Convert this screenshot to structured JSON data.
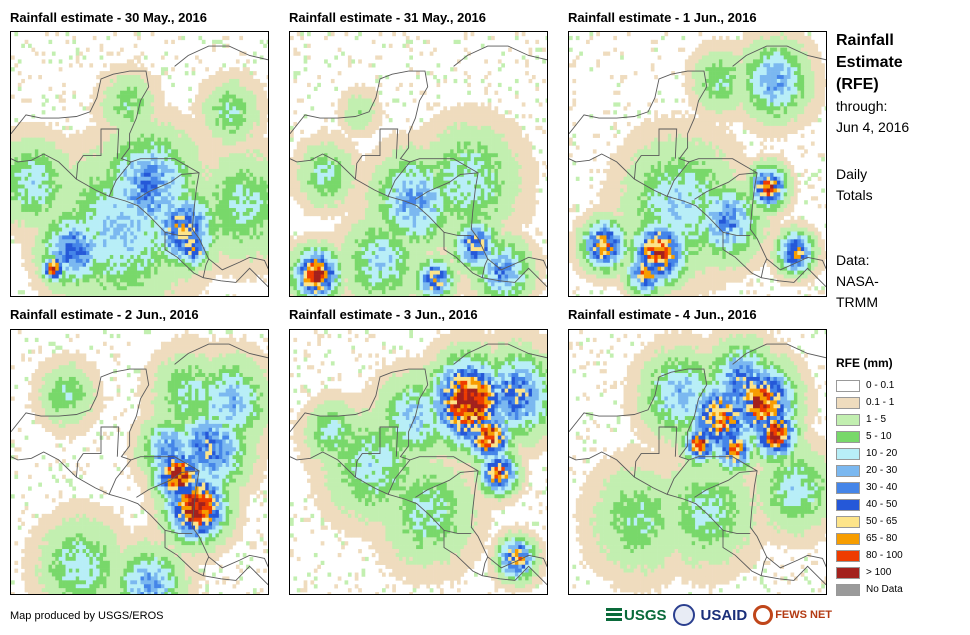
{
  "panels": [
    {
      "title": "Rainfall estimate - 30 May., 2016",
      "blobs": [
        {
          "lon": -87.0,
          "lat": 14.2,
          "r": 2.6,
          "peak": 35
        },
        {
          "lon": -84.5,
          "lat": 11.5,
          "r": 1.8,
          "peak": 55
        },
        {
          "lon": -83.8,
          "lat": 10.3,
          "r": 0.9,
          "peak": 70
        },
        {
          "lon": -92.5,
          "lat": 10.2,
          "r": 1.8,
          "peak": 40
        },
        {
          "lon": -94.0,
          "lat": 9.0,
          "r": 0.6,
          "peak": 100
        },
        {
          "lon": -89.0,
          "lat": 11.5,
          "r": 3.5,
          "peak": 20
        },
        {
          "lon": -80.0,
          "lat": 13.0,
          "r": 2.5,
          "peak": 12
        },
        {
          "lon": -95.5,
          "lat": 14.5,
          "r": 2.0,
          "peak": 15
        },
        {
          "lon": -88.5,
          "lat": 19.5,
          "r": 1.5,
          "peak": 8
        },
        {
          "lon": -81.0,
          "lat": 19.0,
          "r": 1.5,
          "peak": 10
        }
      ]
    },
    {
      "title": "Rainfall estimate - 31 May., 2016",
      "blobs": [
        {
          "lon": -95.2,
          "lat": 8.6,
          "r": 1.2,
          "peak": 110
        },
        {
          "lon": -88.0,
          "lat": 13.3,
          "r": 2.2,
          "peak": 30
        },
        {
          "lon": -83.5,
          "lat": 10.5,
          "r": 1.2,
          "peak": 55
        },
        {
          "lon": -86.5,
          "lat": 8.3,
          "r": 1.0,
          "peak": 60
        },
        {
          "lon": -84.0,
          "lat": 14.5,
          "r": 2.6,
          "peak": 15
        },
        {
          "lon": -90.5,
          "lat": 9.5,
          "r": 2.0,
          "peak": 18
        },
        {
          "lon": -94.5,
          "lat": 15.0,
          "r": 1.5,
          "peak": 12
        },
        {
          "lon": -81.5,
          "lat": 8.8,
          "r": 1.5,
          "peak": 35
        },
        {
          "lon": -92.0,
          "lat": 19.0,
          "r": 1.0,
          "peak": 5
        }
      ]
    },
    {
      "title": "Rainfall estimate - 1 Jun., 2016",
      "blobs": [
        {
          "lon": -90.5,
          "lat": 10.0,
          "r": 1.5,
          "peak": 90
        },
        {
          "lon": -91.5,
          "lat": 8.7,
          "r": 1.0,
          "peak": 75
        },
        {
          "lon": -94.5,
          "lat": 10.5,
          "r": 1.2,
          "peak": 70
        },
        {
          "lon": -82.5,
          "lat": 14.2,
          "r": 1.0,
          "peak": 85
        },
        {
          "lon": -85.5,
          "lat": 12.0,
          "r": 1.8,
          "peak": 35
        },
        {
          "lon": -80.5,
          "lat": 10.0,
          "r": 1.0,
          "peak": 65
        },
        {
          "lon": -82.0,
          "lat": 21.0,
          "r": 1.8,
          "peak": 30
        },
        {
          "lon": -89.0,
          "lat": 13.0,
          "r": 3.0,
          "peak": 18
        },
        {
          "lon": -86.0,
          "lat": 21.0,
          "r": 1.5,
          "peak": 10
        }
      ]
    },
    {
      "title": "Rainfall estimate - 2 Jun., 2016",
      "blobs": [
        {
          "lon": -84.8,
          "lat": 14.8,
          "r": 1.3,
          "peak": 110
        },
        {
          "lon": -83.5,
          "lat": 12.8,
          "r": 1.6,
          "peak": 120
        },
        {
          "lon": -82.5,
          "lat": 16.5,
          "r": 2.0,
          "peak": 45
        },
        {
          "lon": -85.5,
          "lat": 16.5,
          "r": 1.5,
          "peak": 35
        },
        {
          "lon": -81.0,
          "lat": 19.5,
          "r": 2.0,
          "peak": 25
        },
        {
          "lon": -84.0,
          "lat": 20.0,
          "r": 2.0,
          "peak": 12
        },
        {
          "lon": -92.0,
          "lat": 9.0,
          "r": 2.2,
          "peak": 15
        },
        {
          "lon": -87.0,
          "lat": 7.8,
          "r": 1.8,
          "peak": 30
        },
        {
          "lon": -93.0,
          "lat": 20.0,
          "r": 1.5,
          "peak": 10
        }
      ]
    },
    {
      "title": "Rainfall estimate - 3 Jun., 2016",
      "blobs": [
        {
          "lon": -84.0,
          "lat": 19.5,
          "r": 2.0,
          "peak": 130
        },
        {
          "lon": -82.5,
          "lat": 17.3,
          "r": 1.2,
          "peak": 100
        },
        {
          "lon": -81.8,
          "lat": 15.0,
          "r": 1.0,
          "peak": 90
        },
        {
          "lon": -80.5,
          "lat": 20.0,
          "r": 2.0,
          "peak": 45
        },
        {
          "lon": -88.0,
          "lat": 18.5,
          "r": 2.0,
          "peak": 20
        },
        {
          "lon": -91.0,
          "lat": 15.5,
          "r": 2.5,
          "peak": 15
        },
        {
          "lon": -87.0,
          "lat": 12.5,
          "r": 2.5,
          "peak": 12
        },
        {
          "lon": -80.5,
          "lat": 9.5,
          "r": 1.0,
          "peak": 70
        },
        {
          "lon": -94.0,
          "lat": 17.5,
          "r": 1.5,
          "peak": 12
        }
      ]
    },
    {
      "title": "Rainfall estimate - 4 Jun., 2016",
      "blobs": [
        {
          "lon": -86.0,
          "lat": 18.5,
          "r": 1.8,
          "peak": 75
        },
        {
          "lon": -83.0,
          "lat": 19.5,
          "r": 1.8,
          "peak": 95
        },
        {
          "lon": -82.0,
          "lat": 17.5,
          "r": 1.2,
          "peak": 105
        },
        {
          "lon": -87.5,
          "lat": 16.8,
          "r": 0.9,
          "peak": 95
        },
        {
          "lon": -85.0,
          "lat": 16.5,
          "r": 1.0,
          "peak": 80
        },
        {
          "lon": -84.5,
          "lat": 20.8,
          "r": 1.8,
          "peak": 40
        },
        {
          "lon": -89.0,
          "lat": 20.0,
          "r": 2.0,
          "peak": 25
        },
        {
          "lon": -87.0,
          "lat": 12.5,
          "r": 2.5,
          "peak": 12
        },
        {
          "lon": -92.0,
          "lat": 12.0,
          "r": 2.5,
          "peak": 10
        },
        {
          "lon": -80.5,
          "lat": 14.0,
          "r": 2.0,
          "peak": 15
        }
      ]
    }
  ],
  "sidebar": {
    "title_lines": [
      "Rainfall",
      "Estimate",
      "(RFE)"
    ],
    "through_label": "through:",
    "through_date": "Jun 4, 2016",
    "period_lines": [
      "Daily",
      "Totals"
    ],
    "source_lines": [
      "Data:",
      "NASA-",
      "TRMM"
    ]
  },
  "legend": {
    "title": "RFE (mm)",
    "items": [
      {
        "label": "0 - 0.1",
        "color": "#ffffff"
      },
      {
        "label": "0.1 - 1",
        "color": "#efdcbe"
      },
      {
        "label": "1 - 5",
        "color": "#c2efb0"
      },
      {
        "label": "5 - 10",
        "color": "#78d86a"
      },
      {
        "label": "10 - 20",
        "color": "#b8eef7"
      },
      {
        "label": "20 - 30",
        "color": "#7bb8f0"
      },
      {
        "label": "30 - 40",
        "color": "#4585e8"
      },
      {
        "label": "40 - 50",
        "color": "#2558d8"
      },
      {
        "label": "50 - 65",
        "color": "#fde48a"
      },
      {
        "label": "65 - 80",
        "color": "#f79d00"
      },
      {
        "label": "80 - 100",
        "color": "#ee3c00"
      },
      {
        "label": "> 100",
        "color": "#a3211d"
      },
      {
        "label": "No Data",
        "color": "#9a9a9a"
      }
    ]
  },
  "footer": {
    "credit": "Map produced by USGS/EROS",
    "logos": [
      "USGS",
      "USAID",
      "FEWS NET"
    ]
  }
}
